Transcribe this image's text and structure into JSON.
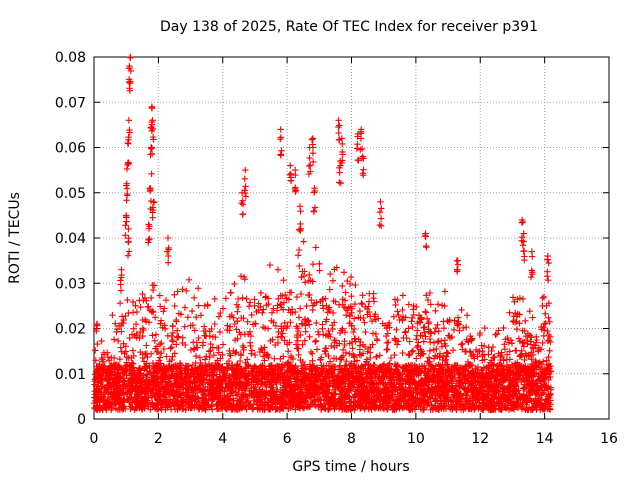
{
  "chart_data": {
    "type": "scatter",
    "title": "Day 138 of 2025, Rate Of TEC Index for receiver p391",
    "xlabel": "GPS time / hours",
    "ylabel": "ROTI / TECUs",
    "xlim": [
      0,
      16
    ],
    "ylim": [
      0,
      0.08
    ],
    "x_ticks": [
      0,
      2,
      4,
      6,
      8,
      10,
      12,
      14,
      16
    ],
    "y_ticks": [
      0,
      0.01,
      0.02,
      0.03,
      0.04,
      0.05,
      0.06,
      0.07,
      0.08
    ],
    "x_tick_labels": [
      "0",
      "2",
      "4",
      "6",
      "8",
      "10",
      "12",
      "14",
      "16"
    ],
    "y_tick_labels": [
      "0",
      "0.01",
      "0.02",
      "0.03",
      "0.04",
      "0.05",
      "0.06",
      "0.07",
      "0.08"
    ],
    "grid": true,
    "marker": "+",
    "marker_color": "#ff0000",
    "series": [
      {
        "name": "ROTI",
        "x_range": [
          0.0,
          14.2
        ],
        "baseline_range": [
          0.002,
          0.012
        ],
        "envelope": [
          {
            "x": 0.0,
            "y": 0.015
          },
          {
            "x": 0.3,
            "y": 0.018
          },
          {
            "x": 0.6,
            "y": 0.024
          },
          {
            "x": 0.9,
            "y": 0.027
          },
          {
            "x": 1.2,
            "y": 0.026
          },
          {
            "x": 1.5,
            "y": 0.028
          },
          {
            "x": 1.8,
            "y": 0.034
          },
          {
            "x": 2.1,
            "y": 0.029
          },
          {
            "x": 2.4,
            "y": 0.027
          },
          {
            "x": 2.7,
            "y": 0.03
          },
          {
            "x": 3.0,
            "y": 0.032
          },
          {
            "x": 3.3,
            "y": 0.03
          },
          {
            "x": 3.6,
            "y": 0.028
          },
          {
            "x": 3.9,
            "y": 0.026
          },
          {
            "x": 4.2,
            "y": 0.028
          },
          {
            "x": 4.5,
            "y": 0.033
          },
          {
            "x": 4.8,
            "y": 0.034
          },
          {
            "x": 5.1,
            "y": 0.03
          },
          {
            "x": 5.4,
            "y": 0.034
          },
          {
            "x": 5.7,
            "y": 0.036
          },
          {
            "x": 6.0,
            "y": 0.034
          },
          {
            "x": 6.3,
            "y": 0.04
          },
          {
            "x": 6.6,
            "y": 0.041
          },
          {
            "x": 6.9,
            "y": 0.038
          },
          {
            "x": 7.2,
            "y": 0.031
          },
          {
            "x": 7.5,
            "y": 0.034
          },
          {
            "x": 7.8,
            "y": 0.036
          },
          {
            "x": 8.1,
            "y": 0.033
          },
          {
            "x": 8.4,
            "y": 0.032
          },
          {
            "x": 8.7,
            "y": 0.03
          },
          {
            "x": 9.0,
            "y": 0.029
          },
          {
            "x": 9.3,
            "y": 0.028
          },
          {
            "x": 9.6,
            "y": 0.03
          },
          {
            "x": 9.9,
            "y": 0.03
          },
          {
            "x": 10.2,
            "y": 0.031
          },
          {
            "x": 10.5,
            "y": 0.027
          },
          {
            "x": 10.8,
            "y": 0.028
          },
          {
            "x": 11.1,
            "y": 0.03
          },
          {
            "x": 11.4,
            "y": 0.026
          },
          {
            "x": 11.7,
            "y": 0.023
          },
          {
            "x": 12.0,
            "y": 0.021
          },
          {
            "x": 12.3,
            "y": 0.02
          },
          {
            "x": 12.6,
            "y": 0.02
          },
          {
            "x": 12.9,
            "y": 0.024
          },
          {
            "x": 13.2,
            "y": 0.033
          },
          {
            "x": 13.5,
            "y": 0.026
          },
          {
            "x": 13.8,
            "y": 0.022
          },
          {
            "x": 14.1,
            "y": 0.034
          }
        ],
        "spikes": [
          {
            "x": 0.1,
            "y": 0.021
          },
          {
            "x": 0.85,
            "y": 0.033
          },
          {
            "x": 1.0,
            "y": 0.045
          },
          {
            "x": 1.02,
            "y": 0.052
          },
          {
            "x": 1.05,
            "y": 0.061
          },
          {
            "x": 1.08,
            "y": 0.066
          },
          {
            "x": 1.1,
            "y": 0.078
          },
          {
            "x": 1.12,
            "y": 0.08
          },
          {
            "x": 1.07,
            "y": 0.042
          },
          {
            "x": 1.7,
            "y": 0.043
          },
          {
            "x": 1.75,
            "y": 0.051
          },
          {
            "x": 1.78,
            "y": 0.06
          },
          {
            "x": 1.8,
            "y": 0.069
          },
          {
            "x": 1.82,
            "y": 0.066
          },
          {
            "x": 1.85,
            "y": 0.048
          },
          {
            "x": 2.3,
            "y": 0.04
          },
          {
            "x": 4.6,
            "y": 0.05
          },
          {
            "x": 4.7,
            "y": 0.055
          },
          {
            "x": 5.8,
            "y": 0.064
          },
          {
            "x": 6.1,
            "y": 0.056
          },
          {
            "x": 6.25,
            "y": 0.055
          },
          {
            "x": 6.4,
            "y": 0.047
          },
          {
            "x": 6.7,
            "y": 0.06
          },
          {
            "x": 6.8,
            "y": 0.062
          },
          {
            "x": 6.85,
            "y": 0.051
          },
          {
            "x": 7.6,
            "y": 0.066
          },
          {
            "x": 7.65,
            "y": 0.057
          },
          {
            "x": 7.7,
            "y": 0.062
          },
          {
            "x": 8.2,
            "y": 0.063
          },
          {
            "x": 8.3,
            "y": 0.064
          },
          {
            "x": 8.35,
            "y": 0.058
          },
          {
            "x": 8.9,
            "y": 0.048
          },
          {
            "x": 10.3,
            "y": 0.041
          },
          {
            "x": 11.3,
            "y": 0.035
          },
          {
            "x": 13.3,
            "y": 0.044
          },
          {
            "x": 13.35,
            "y": 0.041
          },
          {
            "x": 13.6,
            "y": 0.037
          },
          {
            "x": 14.1,
            "y": 0.036
          }
        ]
      }
    ]
  }
}
